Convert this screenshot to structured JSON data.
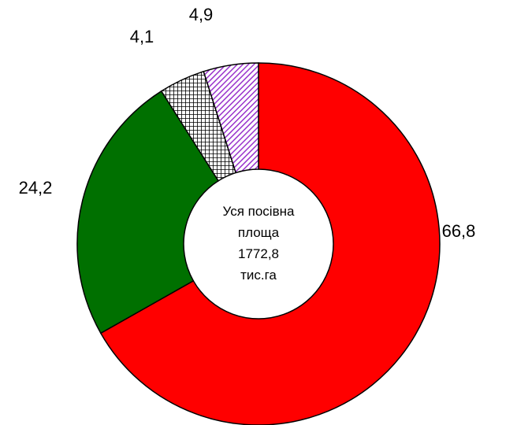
{
  "chart_data": {
    "type": "donut",
    "values": [
      66.8,
      24.2,
      4.1,
      4.9
    ],
    "value_labels": [
      "66,8",
      "24,2",
      "4,1",
      "4,9"
    ],
    "colors": [
      "#ff0000",
      "#007000",
      "#000000",
      "#9933cc"
    ],
    "patterns": [
      "solid",
      "solid",
      "crosshatch",
      "diagonal"
    ],
    "center_text": [
      "Уся посівна",
      "площа",
      "1772,8",
      "тис.га"
    ]
  }
}
